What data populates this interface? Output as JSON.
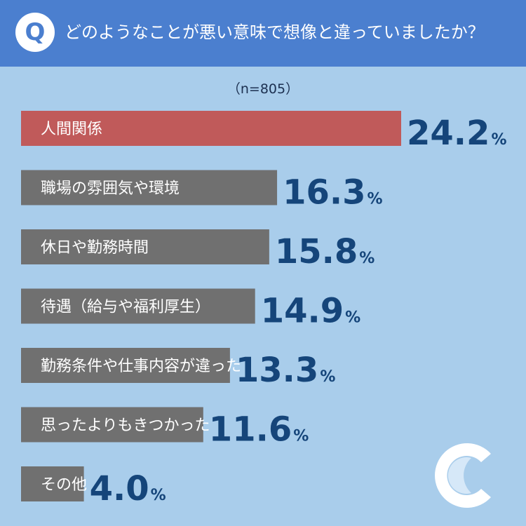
{
  "header": {
    "badge": "Q",
    "question": "どのようなことが悪い意味で想像と違っていましたか？"
  },
  "sample_size": "（n=805）",
  "colors": {
    "header_bg": "#4b7fcf",
    "background": "#a9cdeb",
    "highlight_bar": "#c05a5a",
    "bar": "#707070",
    "value_text": "#15457a",
    "label_text": "#ffffff"
  },
  "logo": {
    "icon": "crescent-c-logo-icon"
  },
  "chart_data": {
    "type": "bar",
    "orientation": "horizontal",
    "categories": [
      "人間関係",
      "職場の雰囲気や環境",
      "休日や勤務時間",
      "待遇（給与や福利厚生）",
      "勤務条件や仕事内容が違った",
      "思ったよりもきつかった",
      "その他"
    ],
    "values": [
      24.2,
      16.3,
      15.8,
      14.9,
      13.3,
      11.6,
      4.0
    ],
    "value_labels": [
      "24.2",
      "16.3",
      "15.8",
      "14.9",
      "13.3",
      "11.6",
      "4.0"
    ],
    "unit": "%",
    "highlight_index": 0,
    "xlim": [
      0,
      24.2
    ]
  }
}
